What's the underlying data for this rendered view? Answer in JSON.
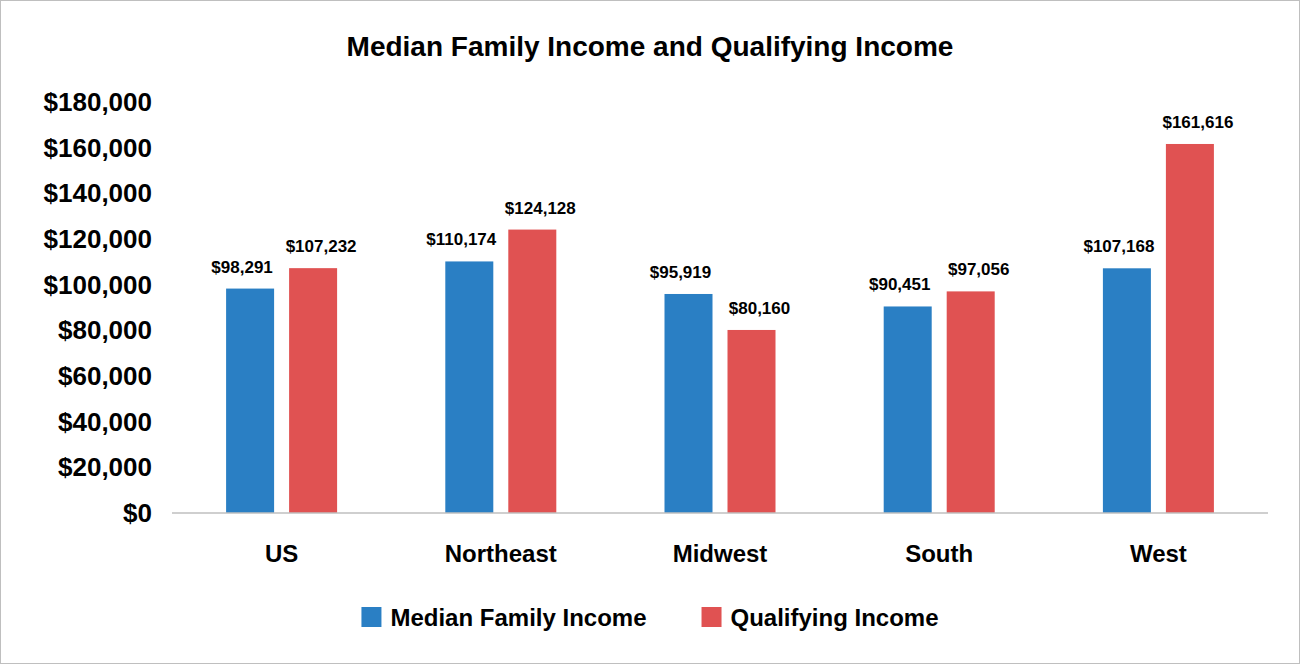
{
  "chart_data": {
    "type": "bar",
    "title": "Median Family Income and Qualifying Income",
    "categories": [
      "US",
      "Northeast",
      "Midwest",
      "South",
      "West"
    ],
    "series": [
      {
        "name": "Median Family Income",
        "color": "#2a7fc4",
        "values": [
          98291,
          110174,
          95919,
          90451,
          107168
        ],
        "value_labels": [
          "$98,291",
          "$110,174",
          "$95,919",
          "$90,451",
          "$107,168"
        ]
      },
      {
        "name": "Qualifying Income",
        "color": "#e05252",
        "values": [
          107232,
          124128,
          80160,
          97056,
          161616
        ],
        "value_labels": [
          "$107,232",
          "$124,128",
          "$80,160",
          "$97,056",
          "$161,616"
        ]
      }
    ],
    "ylim": [
      0,
      180000
    ],
    "yticks": [
      {
        "value": 0,
        "label": "$0"
      },
      {
        "value": 20000,
        "label": "$20,000"
      },
      {
        "value": 40000,
        "label": "$40,000"
      },
      {
        "value": 60000,
        "label": "$60,000"
      },
      {
        "value": 80000,
        "label": "$80,000"
      },
      {
        "value": 100000,
        "label": "$100,000"
      },
      {
        "value": 120000,
        "label": "$120,000"
      },
      {
        "value": 140000,
        "label": "$140,000"
      },
      {
        "value": 160000,
        "label": "$160,000"
      },
      {
        "value": 180000,
        "label": "$180,000"
      }
    ],
    "grid": false,
    "legend": "bottom",
    "data_labels": true
  }
}
